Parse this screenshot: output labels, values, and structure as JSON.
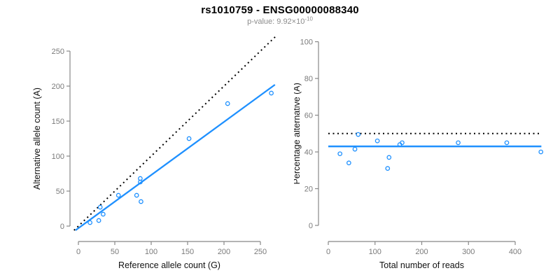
{
  "header": {
    "title": "rs1010759 - ENSG00000088340",
    "subtitle_text": "p-value: 9.92×10",
    "subtitle_exponent": "-10"
  },
  "colors": {
    "accent_blue": "#1E90FF",
    "identity_black": "#000000",
    "axis_gray": "#888888",
    "tick_label_gray": "#7a7a7a",
    "subtitle_gray": "#8c8c8c"
  },
  "chart_data": [
    {
      "type": "scatter",
      "name": "allele-counts-scatter",
      "xlabel": "Reference allele count (G)",
      "ylabel": "Alternative allele count (A)",
      "x_ticks": [
        0,
        50,
        100,
        150,
        200,
        250
      ],
      "y_ticks": [
        0,
        50,
        100,
        150,
        200,
        250
      ],
      "xlim": [
        -10,
        272
      ],
      "ylim": [
        -10,
        272
      ],
      "grid": false,
      "legend": null,
      "points": [
        [
          16,
          5
        ],
        [
          28,
          8
        ],
        [
          30,
          27
        ],
        [
          34,
          17
        ],
        [
          55,
          44
        ],
        [
          80,
          44
        ],
        [
          85,
          63
        ],
        [
          85,
          68
        ],
        [
          86,
          35
        ],
        [
          152,
          125
        ],
        [
          205,
          175
        ],
        [
          265,
          190
        ]
      ],
      "lines": [
        {
          "name": "identity-line",
          "style": "dotted",
          "color": "#000000",
          "width": 2,
          "x1": -6,
          "y1": -6,
          "x2": 271,
          "y2": 271
        },
        {
          "name": "fit-line",
          "style": "solid",
          "color": "#1E90FF",
          "width": 2.3,
          "x1": -4,
          "y1": -6,
          "x2": 270,
          "y2": 202
        }
      ]
    },
    {
      "type": "scatter",
      "name": "percentage-alternative-scatter",
      "xlabel": "Total number of reads",
      "ylabel": "Percentage alternative (A)",
      "x_ticks": [
        0,
        100,
        200,
        300,
        400
      ],
      "y_ticks": [
        0,
        20,
        40,
        60,
        80,
        100
      ],
      "xlim": [
        -18,
        475
      ],
      "ylim": [
        -4,
        104
      ],
      "grid": false,
      "legend": null,
      "points": [
        [
          25,
          39
        ],
        [
          44,
          34
        ],
        [
          57,
          41.5
        ],
        [
          64,
          49.5
        ],
        [
          105,
          46
        ],
        [
          127,
          31
        ],
        [
          130,
          37
        ],
        [
          153,
          44
        ],
        [
          158,
          45
        ],
        [
          278,
          45
        ],
        [
          382,
          45
        ],
        [
          455,
          40
        ]
      ],
      "lines": [
        {
          "name": "expected-50pct-line",
          "style": "dotted",
          "color": "#000000",
          "width": 2,
          "x1": 0,
          "y1": 50,
          "x2": 456,
          "y2": 50
        },
        {
          "name": "estimated-pct-line",
          "style": "solid",
          "color": "#1E90FF",
          "width": 2.5,
          "x1": 0,
          "y1": 43,
          "x2": 456,
          "y2": 43
        }
      ]
    }
  ]
}
